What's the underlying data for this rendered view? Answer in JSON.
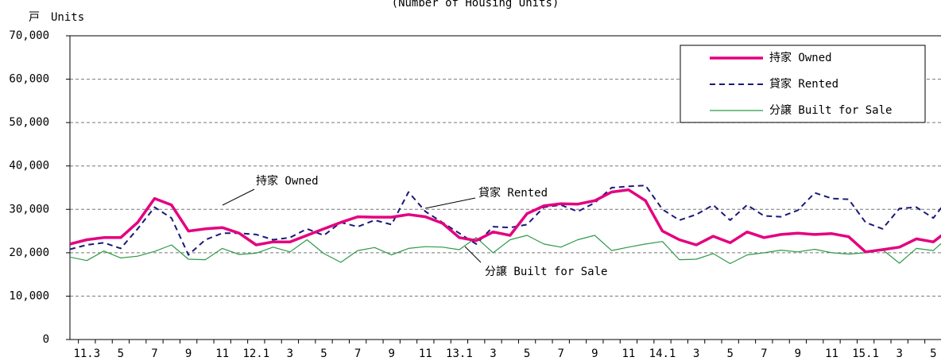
{
  "chart_data": {
    "type": "line",
    "title": "(Number of Housing Units)",
    "y_label": "戸　Units",
    "categories": [
      null,
      "11.3",
      null,
      "5",
      null,
      "7",
      null,
      "9",
      null,
      "11",
      null,
      "12.1",
      null,
      "3",
      null,
      "5",
      null,
      "7",
      null,
      "9",
      null,
      "11",
      null,
      "13.1",
      null,
      "3",
      null,
      "5",
      null,
      "7",
      null,
      "9",
      null,
      "11",
      null,
      "14.1",
      null,
      "3",
      null,
      "5",
      null,
      "7",
      null,
      "9",
      null,
      "11",
      null,
      "15.1",
      null,
      "3",
      null,
      "5",
      null
    ],
    "series": [
      {
        "name": "持家 Owned",
        "color": "#e4007f",
        "style": "solid",
        "values": [
          22000,
          23000,
          23500,
          23500,
          27000,
          32500,
          31000,
          25000,
          25500,
          25800,
          24500,
          21800,
          22500,
          22500,
          24000,
          25500,
          27000,
          28300,
          28200,
          28200,
          28800,
          28300,
          26800,
          23500,
          22800,
          24800,
          24000,
          29000,
          30800,
          31300,
          31200,
          32000,
          34000,
          34500,
          32000,
          25000,
          23000,
          21800,
          23800,
          22300,
          24800,
          23500,
          24200,
          24500,
          24200,
          24400,
          23700,
          20200,
          20700,
          21300,
          23200,
          22500,
          25500
        ]
      },
      {
        "name": "貸家 Rented",
        "color": "#1a1a78",
        "style": "dashed",
        "values": [
          20800,
          21800,
          22300,
          21000,
          25500,
          30500,
          28000,
          19500,
          23000,
          24500,
          24500,
          24200,
          23000,
          23500,
          25500,
          24000,
          27000,
          26000,
          27500,
          26500,
          34000,
          29500,
          27000,
          24500,
          22000,
          26000,
          25800,
          26500,
          30500,
          31000,
          29500,
          31500,
          35000,
          35300,
          35500,
          30000,
          27500,
          28800,
          31000,
          27500,
          31000,
          28500,
          28300,
          29800,
          33800,
          32500,
          32300,
          27000,
          25500,
          30200,
          30500,
          28000,
          33000
        ]
      },
      {
        "name": "分譲 Built for Sale",
        "color": "#2e9a48",
        "style": "thin",
        "values": [
          19000,
          18200,
          20400,
          18800,
          19200,
          20300,
          21800,
          18500,
          18400,
          21000,
          19600,
          19900,
          21300,
          20200,
          23000,
          19800,
          17800,
          20500,
          21200,
          19500,
          21000,
          21400,
          21300,
          20700,
          23500,
          20000,
          23000,
          24000,
          22000,
          21300,
          23000,
          24000,
          20500,
          21300,
          22000,
          22600,
          18400,
          18500,
          19800,
          17500,
          19500,
          20000,
          20600,
          20200,
          20800,
          20000,
          19700,
          20000,
          20700,
          17600,
          21000,
          20500,
          24000
        ]
      }
    ],
    "annotations": [
      "持家 Owned",
      "貸家 Rented",
      "分譲 Built for Sale"
    ],
    "ylim": [
      0,
      70000
    ],
    "yticks": [
      0,
      {
        "value": 10000,
        "label": "10,000"
      },
      {
        "value": 20000,
        "label": "20,000"
      },
      {
        "value": 30000,
        "label": "30,000"
      },
      {
        "value": 40000,
        "label": "40,000"
      },
      {
        "value": 50000,
        "label": "50,000"
      },
      {
        "value": 60000,
        "label": "60,000"
      },
      {
        "value": 70000,
        "label": "70,000"
      }
    ],
    "grid": true,
    "legend": "top-right"
  }
}
